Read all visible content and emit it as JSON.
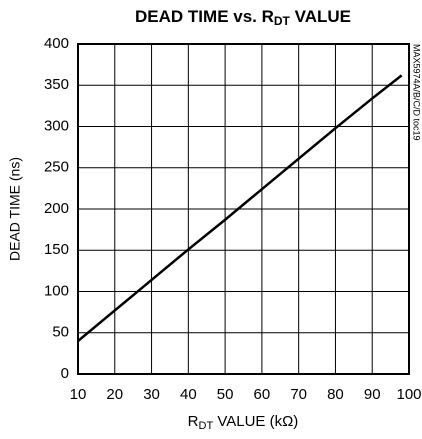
{
  "chart_data": {
    "type": "line",
    "title": [
      "DEAD TIME vs. R",
      "DT",
      " VALUE"
    ],
    "xlabel": [
      "R",
      "DT",
      " VALUE (kΩ)"
    ],
    "ylabel": "DEAD TIME (ns)",
    "annotation": "MAX5974A/B/C/D toc19",
    "x": [
      10,
      20,
      30,
      40,
      50,
      60,
      70,
      80,
      90,
      98
    ],
    "values": [
      40,
      77,
      114,
      151,
      187,
      224,
      261,
      298,
      334,
      362
    ],
    "color": "#000000",
    "xlim": [
      10,
      100
    ],
    "xticks": [
      10,
      20,
      30,
      40,
      50,
      60,
      70,
      80,
      90,
      100
    ],
    "ylim": [
      0,
      400
    ],
    "yticks": [
      0,
      50,
      100,
      150,
      200,
      250,
      300,
      350,
      400
    ],
    "grid": true
  }
}
